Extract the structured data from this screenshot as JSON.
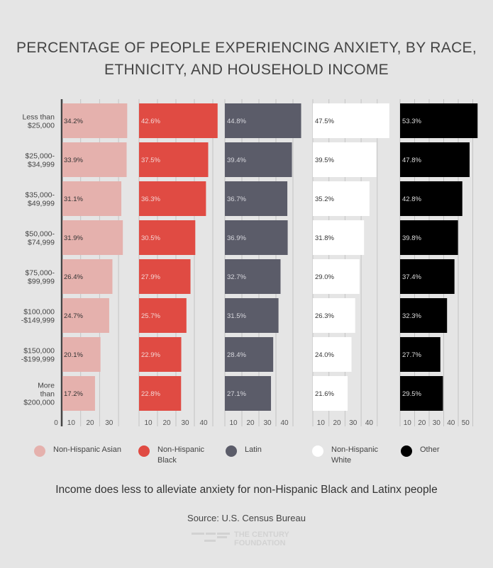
{
  "chart_data": {
    "type": "bar",
    "orientation": "horizontal",
    "title": "PERCENTAGE OF PEOPLE EXPERIENCING ANXIETY, BY RACE, ETHNICITY, AND HOUSEHOLD INCOME",
    "categories": [
      [
        "Less than",
        "$25,000"
      ],
      [
        "$25,000-",
        "$34,999"
      ],
      [
        "$35,000-",
        "$49,999"
      ],
      [
        "$50,000-",
        "$74,999"
      ],
      [
        "$75,000-",
        "$99,999"
      ],
      [
        "$100,000",
        "-$149,999"
      ],
      [
        "$150,000",
        "-$199,999"
      ],
      [
        "More",
        "than",
        "$200,000"
      ]
    ],
    "series": [
      {
        "name": "Non-Hispanic Asian",
        "legend": [
          "Non-Hispanic Asian"
        ],
        "color": "#e5b1ad",
        "label_color": "#333333",
        "values": [
          34.2,
          33.9,
          31.1,
          31.9,
          26.4,
          24.7,
          20.1,
          17.2
        ],
        "ticks": [
          10,
          20,
          30
        ]
      },
      {
        "name": "Non-Hispanic Black",
        "legend": [
          "Non-Hispanic",
          "Black"
        ],
        "color": "#e04b43",
        "label_color": "#f4d6d4",
        "values": [
          42.6,
          37.5,
          36.3,
          30.5,
          27.9,
          25.7,
          22.9,
          22.8
        ],
        "ticks": [
          10,
          20,
          30,
          40
        ]
      },
      {
        "name": "Latin",
        "legend": [
          "Latin"
        ],
        "color": "#5b5c69",
        "label_color": "#d8d8de",
        "values": [
          44.8,
          39.4,
          36.7,
          36.9,
          32.7,
          31.5,
          28.4,
          27.1
        ],
        "ticks": [
          10,
          20,
          30,
          40
        ]
      },
      {
        "name": "Non-Hispanic White",
        "legend": [
          "Non-Hispanic",
          "White"
        ],
        "color": "#ffffff",
        "label_color": "#333333",
        "values": [
          47.5,
          39.5,
          35.2,
          31.8,
          29.0,
          26.3,
          24.0,
          21.6
        ],
        "ticks": [
          10,
          20,
          30,
          40
        ]
      },
      {
        "name": "Other",
        "legend": [
          "Other"
        ],
        "color": "#000000",
        "label_color": "#dddddd",
        "values": [
          53.3,
          47.8,
          42.8,
          39.8,
          37.4,
          32.3,
          27.7,
          29.5
        ],
        "ticks": [
          10,
          20,
          30,
          40,
          50
        ]
      }
    ],
    "zero_label": "0",
    "value_suffix": "%",
    "grid": true,
    "legend_position": "bottom"
  },
  "title_lines": [
    "PERCENTAGE OF PEOPLE EXPERIENCING ANXIETY, BY RACE,",
    "ETHNICITY, AND HOUSEHOLD INCOME"
  ],
  "subtitle": "Income does less to alleviate anxiety for non-Hispanic Black and Latinx people",
  "source": "Source: U.S. Census Bureau",
  "logo": {
    "line1": "THE CENTURY",
    "line2": "FOUNDATION"
  }
}
